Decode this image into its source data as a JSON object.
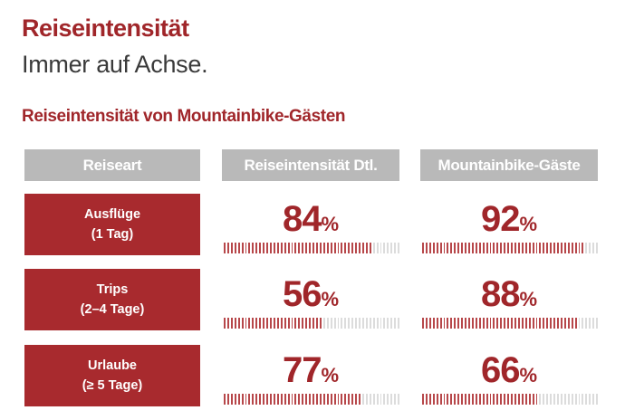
{
  "header": {
    "title": "Reiseintensität",
    "subtitle": "Immer auf Achse."
  },
  "section_heading": "Reiseintensität von Mountainbike-Gästen",
  "colors": {
    "accent": "#a0262a",
    "header_gray": "#b9b9b9",
    "bar_off": "#dcdcdc"
  },
  "chart_data": {
    "type": "table",
    "title": "Reiseintensität von Mountainbike-Gästen",
    "columns": [
      "Reiseart",
      "Reiseintensität Dtl.",
      "Mountainbike-Gäste"
    ],
    "rows": [
      {
        "label_line1": "Ausflüge",
        "label_line2": "(1 Tag)",
        "dtl": 84,
        "mtb": 92
      },
      {
        "label_line1": "Trips",
        "label_line2": "(2–4 Tage)",
        "dtl": 56,
        "mtb": 88
      },
      {
        "label_line1": "Urlaube",
        "label_line2": "(≥ 5 Tage)",
        "dtl": 77,
        "mtb": 66
      }
    ],
    "unit": "%",
    "ylim": [
      0,
      100
    ]
  }
}
